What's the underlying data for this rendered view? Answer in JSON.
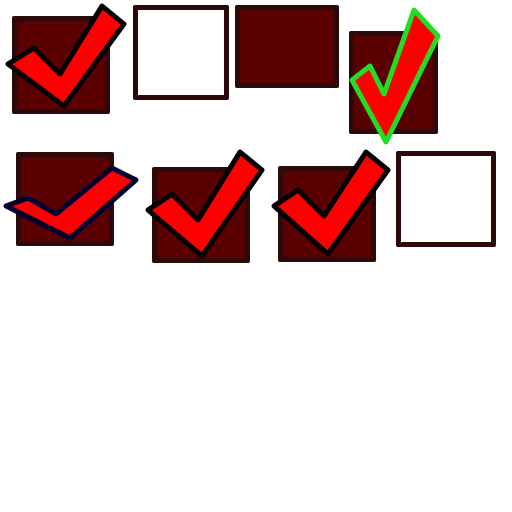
{
  "checkboxes": [
    {
      "state": "checked"
    },
    {
      "state": "unchecked"
    },
    {
      "state": "filled-unchecked"
    },
    {
      "state": "checked",
      "outline": "green"
    },
    {
      "state": "checked",
      "outline": "navy"
    },
    {
      "state": "checked"
    },
    {
      "state": "checked"
    },
    {
      "state": "unchecked"
    }
  ],
  "colors": {
    "box_fill": "#5a0000",
    "box_border": "#2a0a0a",
    "check_fill": "#ff0000",
    "check_outline": "#000000",
    "glitch_outline_green": "#22dd22",
    "glitch_outline_navy": "#000033",
    "background": "#ffffff"
  },
  "icons": [
    "checkmark-icon"
  ]
}
